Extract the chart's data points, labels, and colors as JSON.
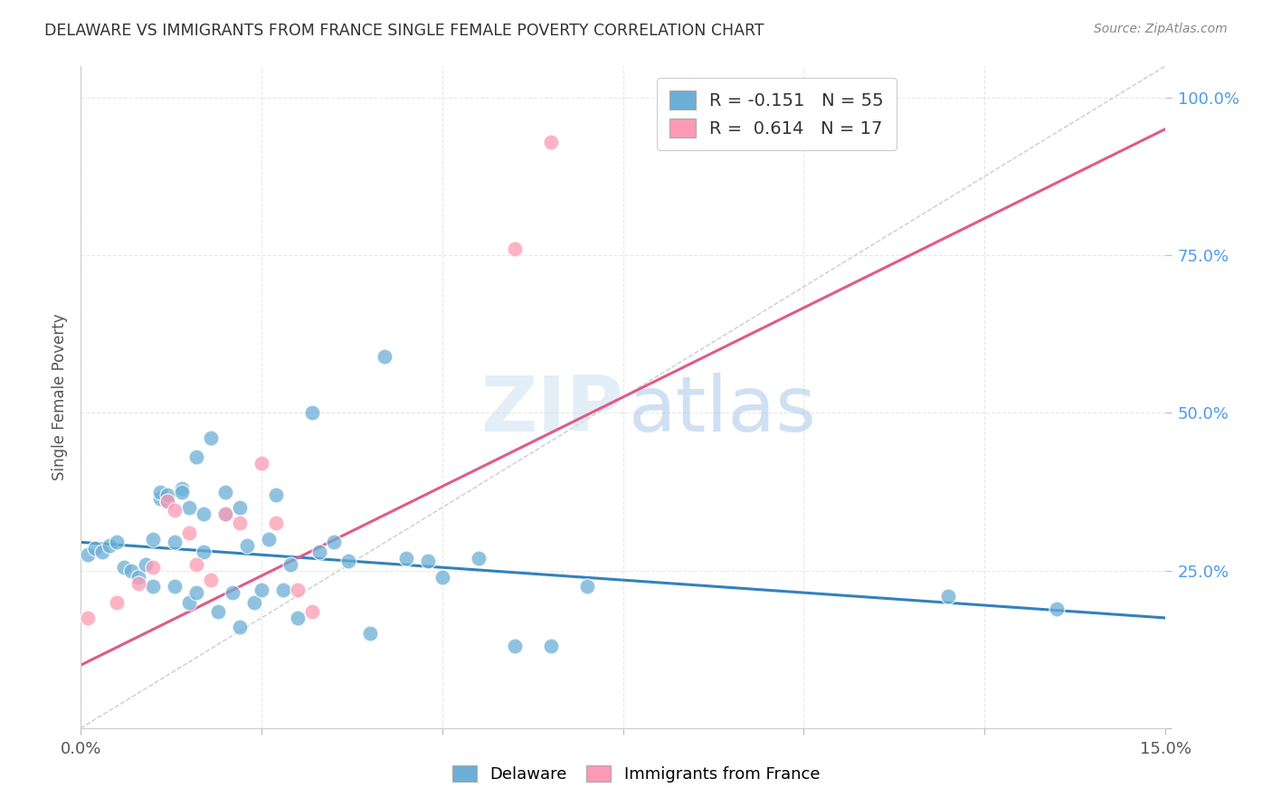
{
  "title": "DELAWARE VS IMMIGRANTS FROM FRANCE SINGLE FEMALE POVERTY CORRELATION CHART",
  "source": "Source: ZipAtlas.com",
  "ylabel": "Single Female Poverty",
  "legend_bottom": [
    "Delaware",
    "Immigrants from France"
  ],
  "blue_R": -0.151,
  "blue_N": 55,
  "pink_R": 0.614,
  "pink_N": 17,
  "blue_color": "#6baed6",
  "pink_color": "#fb9ab4",
  "blue_line_color": "#3182bd",
  "pink_line_color": "#e05a8a",
  "blue_points_x": [
    0.001,
    0.002,
    0.003,
    0.004,
    0.005,
    0.006,
    0.007,
    0.008,
    0.009,
    0.01,
    0.01,
    0.011,
    0.011,
    0.012,
    0.012,
    0.013,
    0.013,
    0.014,
    0.014,
    0.015,
    0.015,
    0.016,
    0.016,
    0.017,
    0.017,
    0.018,
    0.019,
    0.02,
    0.02,
    0.021,
    0.022,
    0.022,
    0.023,
    0.024,
    0.025,
    0.026,
    0.027,
    0.028,
    0.029,
    0.03,
    0.032,
    0.033,
    0.035,
    0.037,
    0.04,
    0.042,
    0.045,
    0.048,
    0.05,
    0.055,
    0.06,
    0.065,
    0.07,
    0.12,
    0.135
  ],
  "blue_points_y": [
    0.275,
    0.285,
    0.28,
    0.29,
    0.295,
    0.255,
    0.25,
    0.24,
    0.26,
    0.225,
    0.3,
    0.365,
    0.375,
    0.36,
    0.37,
    0.295,
    0.225,
    0.38,
    0.375,
    0.35,
    0.2,
    0.215,
    0.43,
    0.34,
    0.28,
    0.46,
    0.185,
    0.34,
    0.375,
    0.215,
    0.16,
    0.35,
    0.29,
    0.2,
    0.22,
    0.3,
    0.37,
    0.22,
    0.26,
    0.175,
    0.5,
    0.28,
    0.295,
    0.265,
    0.15,
    0.59,
    0.27,
    0.265,
    0.24,
    0.27,
    0.13,
    0.13,
    0.225,
    0.21,
    0.19
  ],
  "pink_points_x": [
    0.001,
    0.005,
    0.008,
    0.01,
    0.012,
    0.013,
    0.015,
    0.016,
    0.018,
    0.02,
    0.022,
    0.025,
    0.027,
    0.03,
    0.032,
    0.06,
    0.065
  ],
  "pink_points_y": [
    0.175,
    0.2,
    0.23,
    0.255,
    0.36,
    0.345,
    0.31,
    0.26,
    0.235,
    0.34,
    0.325,
    0.42,
    0.325,
    0.22,
    0.185,
    0.76,
    0.93
  ],
  "blue_trend_x0": 0.0,
  "blue_trend_y0": 0.295,
  "blue_trend_x1": 0.15,
  "blue_trend_y1": 0.175,
  "pink_trend_x0": 0.0,
  "pink_trend_y0": 0.1,
  "pink_trend_x1": 0.15,
  "pink_trend_y1": 0.95,
  "xmin": 0.0,
  "xmax": 0.15,
  "ymin": 0.0,
  "ymax": 1.05,
  "yticks": [
    0.0,
    0.25,
    0.5,
    0.75,
    1.0
  ],
  "ytick_labels_right": [
    "",
    "25.0%",
    "50.0%",
    "75.0%",
    "100.0%"
  ],
  "bg_color": "#ffffff",
  "grid_color": "#e8e8e8"
}
